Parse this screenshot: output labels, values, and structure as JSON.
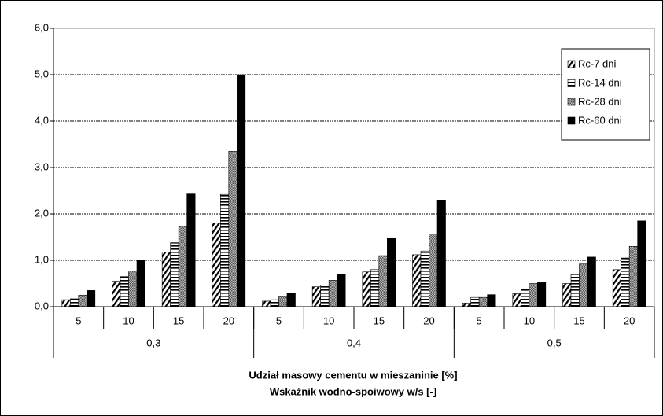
{
  "chart_data": {
    "type": "bar",
    "categories": [
      "5",
      "10",
      "15",
      "20",
      "5",
      "10",
      "15",
      "20",
      "5",
      "10",
      "15",
      "20"
    ],
    "groups": [
      "0,3",
      "0,4",
      "0,5"
    ],
    "xlabels": [
      "Udział masowy cementu w mieszaninie   [%]",
      "Wskaźnik wodno-spoiwowy w/s   [-]"
    ],
    "series": [
      {
        "name": "Rc-7 dni",
        "color": "#000000",
        "pattern": "diagonal",
        "values": [
          0.15,
          0.55,
          1.18,
          1.8,
          0.12,
          0.43,
          0.75,
          1.12,
          0.08,
          0.28,
          0.5,
          0.8
        ]
      },
      {
        "name": "Rc-14 dni",
        "color": "#000000",
        "pattern": "horizontal",
        "values": [
          0.17,
          0.65,
          1.38,
          2.42,
          0.15,
          0.47,
          0.8,
          1.2,
          0.2,
          0.37,
          0.7,
          1.05
        ]
      },
      {
        "name": "Rc-28 dni",
        "color": "#777777",
        "pattern": "crosshatch",
        "values": [
          0.25,
          0.77,
          1.73,
          3.35,
          0.22,
          0.57,
          1.1,
          1.57,
          0.2,
          0.5,
          0.92,
          1.3
        ]
      },
      {
        "name": "Rc-60 dni",
        "color": "#000000",
        "pattern": "solid",
        "values": [
          0.35,
          1.0,
          2.43,
          5.0,
          0.3,
          0.7,
          1.47,
          2.3,
          0.26,
          0.53,
          1.07,
          1.85
        ]
      }
    ],
    "ylim": [
      0,
      6
    ],
    "yticks": [
      {
        "value": 0,
        "label": "0,0"
      },
      {
        "value": 1,
        "label": "1,0"
      },
      {
        "value": 2,
        "label": "2,0"
      },
      {
        "value": 3,
        "label": "3,0"
      },
      {
        "value": 4,
        "label": "4,0"
      },
      {
        "value": 5,
        "label": "5,0"
      },
      {
        "value": 6,
        "label": "6,0"
      }
    ],
    "grid": true,
    "legend": "upper right"
  }
}
